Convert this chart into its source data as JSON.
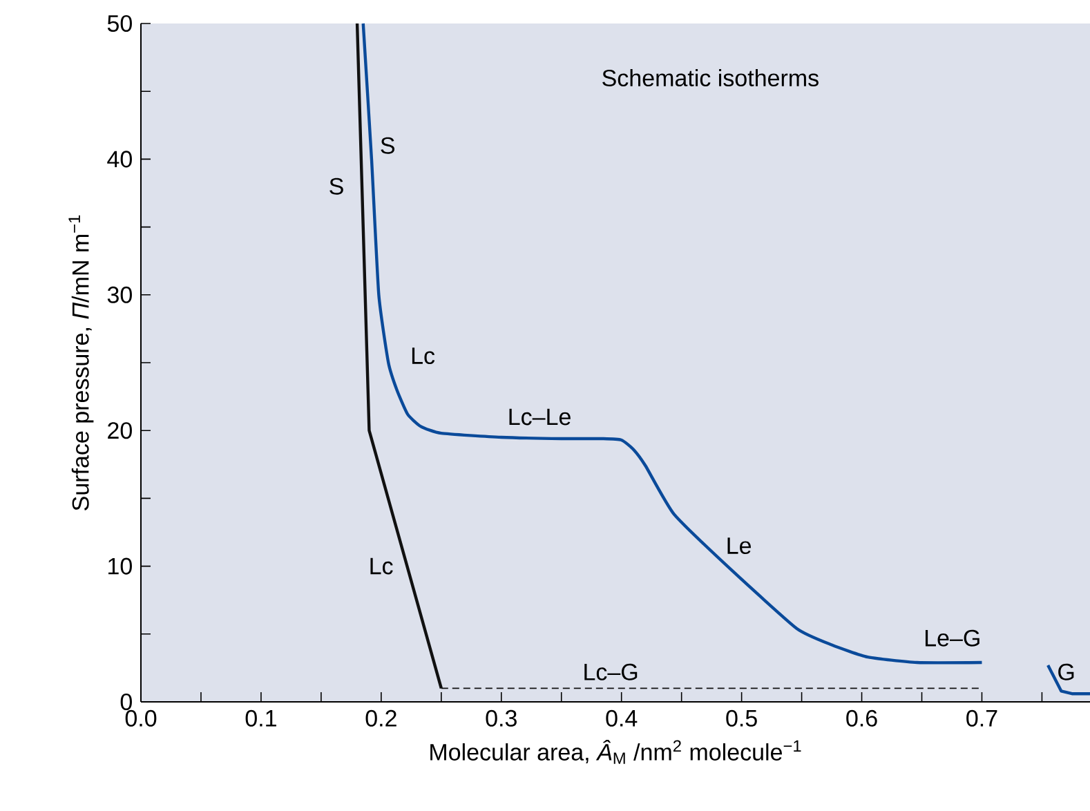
{
  "chart_data": {
    "type": "line",
    "title": "Schematic isotherms",
    "xlabel": "Molecular area, *Â*$_{M}$ /nm$^{2}$ molecule$^{−1}$",
    "ylabel": "Surface pressure, *Π*/mN m$^{−1}$",
    "xlim": [
      0,
      0.79
    ],
    "ylim": [
      0,
      50
    ],
    "xticks": [
      {
        "value": 0,
        "label": "0.0"
      },
      {
        "value": 0.05,
        "label": null
      },
      0.1,
      {
        "value": 0.15,
        "label": null
      },
      0.2,
      {
        "value": 0.25,
        "label": null
      },
      0.3,
      {
        "value": 0.35,
        "label": null
      },
      0.4,
      {
        "value": 0.45,
        "label": null
      },
      0.5,
      {
        "value": 0.55,
        "label": null
      },
      0.6,
      {
        "value": 0.65,
        "label": null
      },
      0.7,
      {
        "value": 0.75,
        "label": null
      }
    ],
    "yticks": [
      0,
      {
        "value": 5,
        "label": null
      },
      10,
      {
        "value": 15,
        "label": null
      },
      20,
      {
        "value": 25,
        "label": null
      },
      30,
      {
        "value": 35,
        "label": null
      },
      40,
      {
        "value": 45,
        "label": null
      },
      50
    ],
    "marker": "none",
    "series": [
      {
        "color": "#111111",
        "line_style": "solid",
        "x": [
          0.18,
          0.19,
          0.25
        ],
        "values": [
          50,
          20,
          1
        ]
      },
      {
        "color": "#111111",
        "line_style": "dashed",
        "x": [
          0.25,
          0.7
        ],
        "values": [
          1,
          1
        ]
      },
      {
        "color": "#0a4a9a",
        "line_style": "solid",
        "x": [
          0.185,
          0.192,
          0.198,
          0.206,
          0.213,
          0.222,
          0.233,
          0.25,
          0.3,
          0.35,
          0.385,
          0.4,
          0.41,
          0.42,
          0.444,
          0.493,
          0.546,
          0.575,
          0.605,
          0.646,
          0.7
        ],
        "values": [
          50,
          40,
          30,
          25,
          23,
          21.2,
          20.3,
          19.8,
          19.5,
          19.4,
          19.4,
          19.3,
          18.6,
          17.4,
          13.8,
          9.6,
          5.4,
          4.2,
          3.3,
          2.9,
          2.9
        ]
      },
      {
        "color": "#0a4a9a",
        "line_style": "solid",
        "x": [
          0.755,
          0.766,
          0.775,
          0.79
        ],
        "values": [
          2.7,
          0.8,
          0.6,
          0.6
        ]
      }
    ],
    "annotations": [
      "S",
      "S",
      "Lc",
      "Lc–Le",
      "Lc",
      "Le",
      "Le–G",
      "Lc–G",
      "G"
    ]
  }
}
